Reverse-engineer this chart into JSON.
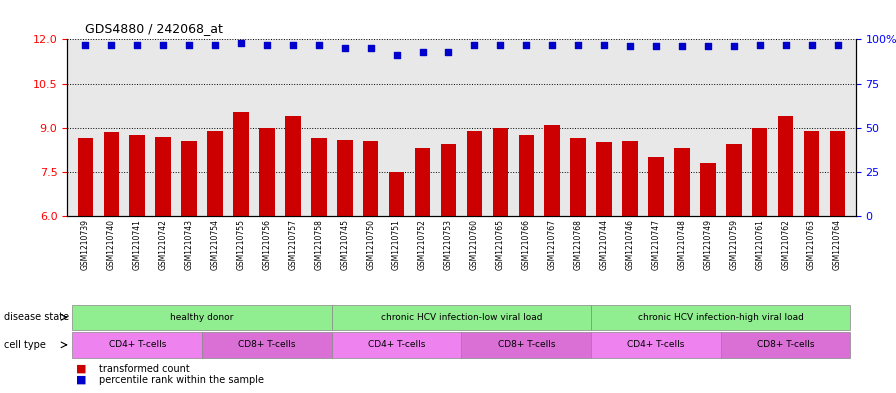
{
  "title": "GDS4880 / 242068_at",
  "samples": [
    "GSM1210739",
    "GSM1210740",
    "GSM1210741",
    "GSM1210742",
    "GSM1210743",
    "GSM1210754",
    "GSM1210755",
    "GSM1210756",
    "GSM1210757",
    "GSM1210758",
    "GSM1210745",
    "GSM1210750",
    "GSM1210751",
    "GSM1210752",
    "GSM1210753",
    "GSM1210760",
    "GSM1210765",
    "GSM1210766",
    "GSM1210767",
    "GSM1210768",
    "GSM1210744",
    "GSM1210746",
    "GSM1210747",
    "GSM1210748",
    "GSM1210749",
    "GSM1210759",
    "GSM1210761",
    "GSM1210762",
    "GSM1210763",
    "GSM1210764"
  ],
  "bar_values": [
    8.65,
    8.85,
    8.75,
    8.7,
    8.55,
    8.9,
    9.55,
    9.0,
    9.4,
    8.65,
    8.6,
    8.55,
    7.5,
    8.3,
    8.45,
    8.9,
    9.0,
    8.75,
    9.1,
    8.65,
    8.5,
    8.55,
    8.0,
    8.3,
    7.8,
    8.45,
    9.0,
    9.4,
    8.9,
    8.9
  ],
  "percentile_values": [
    97,
    97,
    97,
    97,
    97,
    97,
    98,
    97,
    97,
    97,
    95,
    95,
    91,
    93,
    93,
    97,
    97,
    97,
    97,
    97,
    97,
    96,
    96,
    96,
    96,
    96,
    97,
    97,
    97,
    97
  ],
  "bar_color": "#cc0000",
  "dot_color": "#0000cc",
  "ylim_left": [
    6,
    12
  ],
  "yticks_left": [
    6,
    7.5,
    9,
    10.5,
    12
  ],
  "ylim_right": [
    0,
    100
  ],
  "yticks_right": [
    0,
    25,
    50,
    75,
    100
  ],
  "disease_state_groups": [
    {
      "label": "healthy donor",
      "start": 0,
      "end": 9,
      "color": "#90ee90"
    },
    {
      "label": "chronic HCV infection-low viral load",
      "start": 10,
      "end": 19,
      "color": "#90ee90"
    },
    {
      "label": "chronic HCV infection-high viral load",
      "start": 20,
      "end": 29,
      "color": "#90ee90"
    }
  ],
  "cell_type_groups": [
    {
      "label": "CD4+ T-cells",
      "start": 0,
      "end": 4,
      "color": "#ee82ee"
    },
    {
      "label": "CD8+ T-cells",
      "start": 5,
      "end": 9,
      "color": "#da70d6"
    },
    {
      "label": "CD4+ T-cells",
      "start": 10,
      "end": 14,
      "color": "#ee82ee"
    },
    {
      "label": "CD8+ T-cells",
      "start": 15,
      "end": 19,
      "color": "#da70d6"
    },
    {
      "label": "CD4+ T-cells",
      "start": 20,
      "end": 24,
      "color": "#ee82ee"
    },
    {
      "label": "CD8+ T-cells",
      "start": 25,
      "end": 29,
      "color": "#da70d6"
    }
  ],
  "legend_bar_label": "transformed count",
  "legend_dot_label": "percentile rank within the sample",
  "disease_state_label": "disease state",
  "cell_type_label": "cell type",
  "bg_color": "#e8e8e8"
}
